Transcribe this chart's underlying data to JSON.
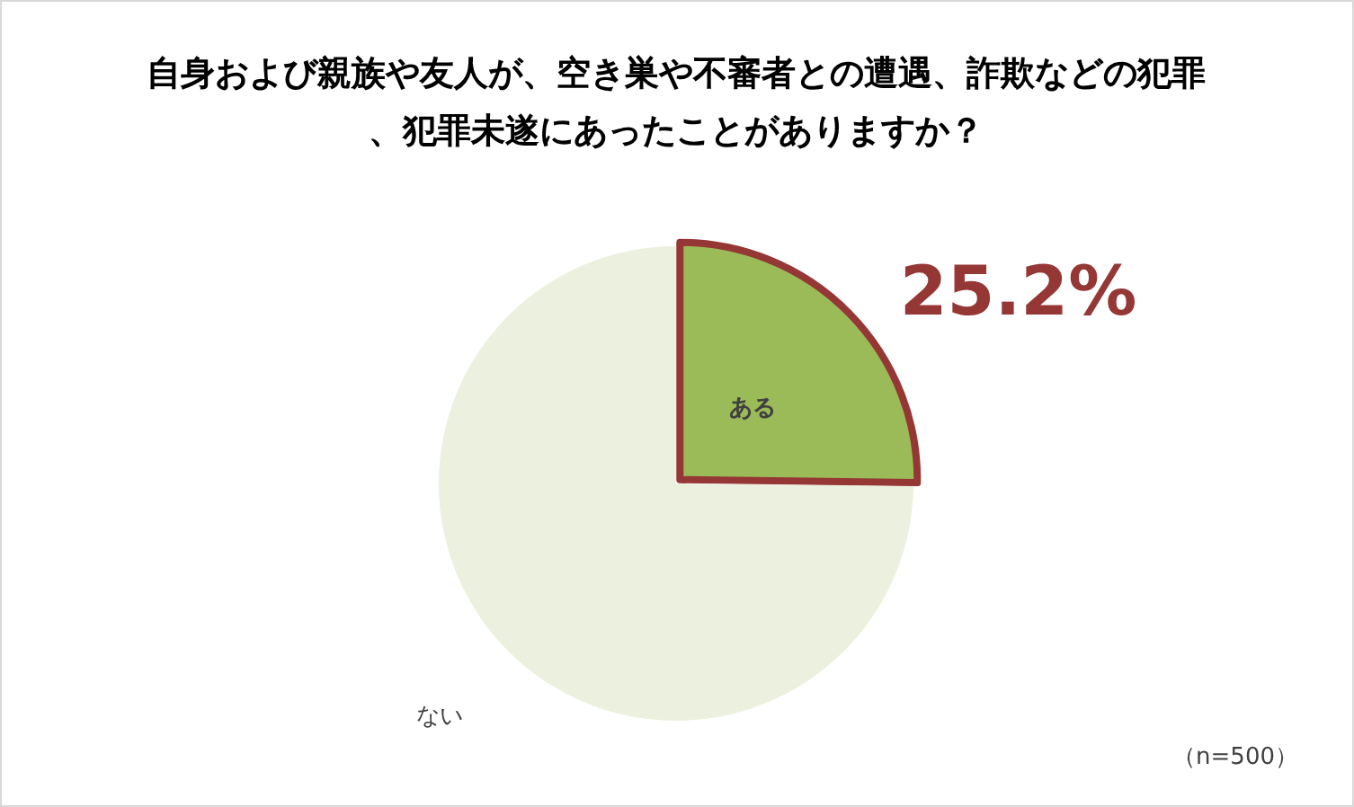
{
  "chart_data": {
    "type": "pie",
    "title": "自身および親族や友人が、空き巣や不審者との遭遇、詐欺などの犯罪、犯罪未遂にあったことがありますか？",
    "categories": [
      "ある",
      "ない"
    ],
    "values": [
      25.2,
      74.8
    ],
    "colors": [
      "#9bbb59",
      "#ebf1de"
    ],
    "value_labels": [
      "25.2%",
      null
    ],
    "annotations": [
      "（n=500）"
    ]
  }
}
